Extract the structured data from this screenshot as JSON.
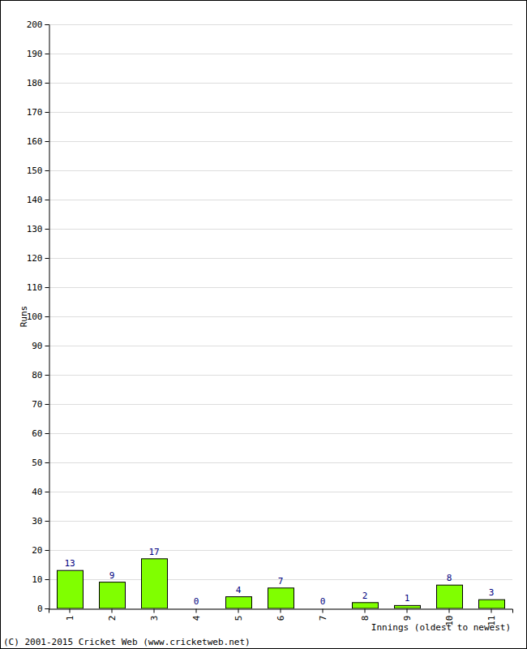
{
  "chart_data": {
    "type": "bar",
    "x_label": "Innings (oldest to newest)",
    "y_label": "Runs",
    "annotations": [
      "(C) 2001-2015 Cricket Web (www.cricketweb.net)"
    ],
    "categories": [
      "1",
      "2",
      "3",
      "4",
      "5",
      "6",
      "7",
      "8",
      "9",
      "10",
      "11"
    ],
    "values": [
      13,
      9,
      17,
      0,
      4,
      7,
      0,
      2,
      1,
      8,
      3
    ],
    "color": "#80ff00",
    "ylim": [
      0,
      200
    ],
    "yticks": [
      0,
      10,
      20,
      30,
      40,
      50,
      60,
      70,
      80,
      90,
      100,
      110,
      120,
      130,
      140,
      150,
      160,
      170,
      180,
      190,
      200
    ],
    "grid": true,
    "data_labels": true
  }
}
